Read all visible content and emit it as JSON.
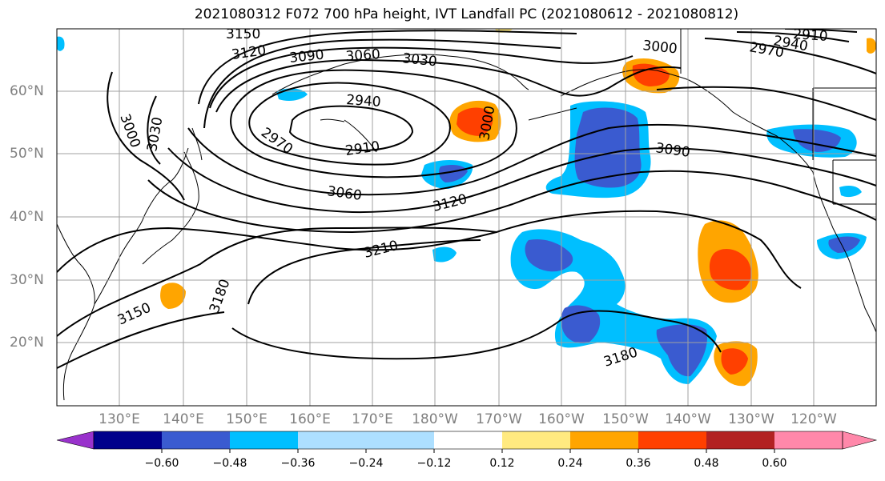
{
  "title": "2021080312 F072 700 hPa height, IVT Landfall PC (2021080612 - 2021080812)",
  "lat_labels": [
    "60°N",
    "50°N",
    "40°N",
    "30°N",
    "20°N"
  ],
  "lon_labels": [
    "130°E",
    "140°E",
    "150°E",
    "160°E",
    "170°E",
    "180°W",
    "170°W",
    "160°W",
    "150°W",
    "140°W",
    "130°W",
    "120°W"
  ],
  "contour_labels": [
    "3150",
    "3120",
    "3090",
    "3060",
    "3030",
    "3000",
    "2970",
    "2940",
    "2910",
    "3000",
    "3030",
    "2940",
    "2970",
    "2910",
    "3000",
    "3090",
    "3060",
    "3120",
    "3210",
    "3180",
    "3150",
    "3180"
  ],
  "colorbar": {
    "colors": [
      "#9932CC",
      "#00008B",
      "#3A5BD0",
      "#00BFFF",
      "#ADDFFF",
      "#FFFFFF",
      "#FFEA80",
      "#FFA500",
      "#FF4000",
      "#B22222",
      "#FF88AA"
    ],
    "ticks": [
      "−0.60",
      "−0.48",
      "−0.36",
      "−0.24",
      "−0.12",
      "0.12",
      "0.24",
      "0.36",
      "0.48",
      "0.60"
    ]
  },
  "colors": {
    "negative_light": "#00BFFF",
    "negative_mid": "#3A5BD0",
    "positive_light": "#FFEA80",
    "positive_mid": "#FFA500",
    "positive_strong": "#FF4000",
    "grid": "#A0A0A0",
    "contour": "#000000"
  }
}
